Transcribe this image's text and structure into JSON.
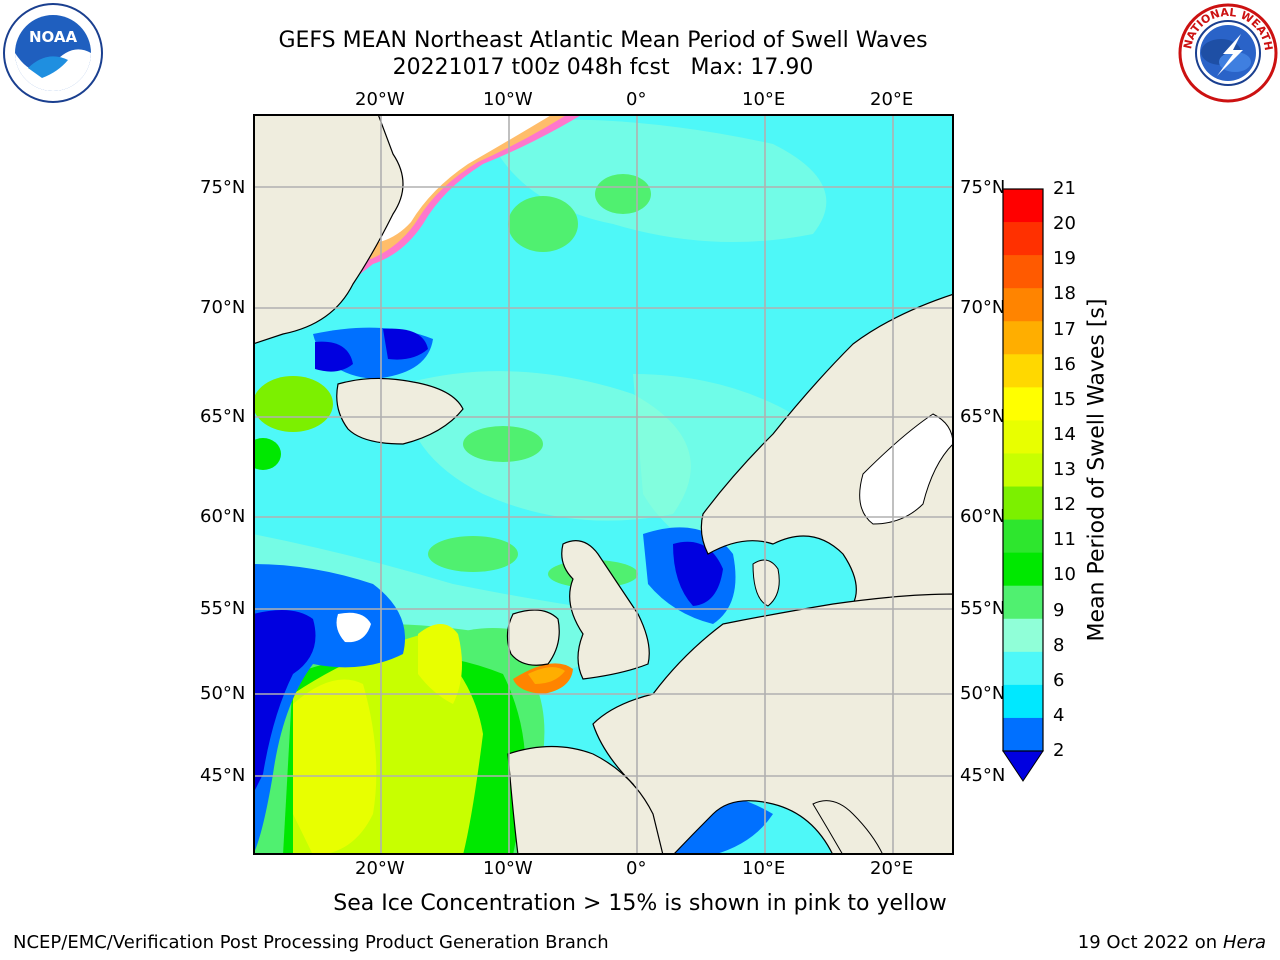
{
  "title": {
    "line1": "GEFS MEAN Northeast Atlantic Mean Period of Swell Waves",
    "line2": "20221017 t00z 048h fcst   Max: 17.90"
  },
  "logos": {
    "left": {
      "text": "NOAA",
      "name": "noaa-logo"
    },
    "right": {
      "text": "NATIONAL WEATHER SERVICE",
      "name": "nws-logo"
    }
  },
  "map": {
    "lon_ticks": [
      "20°W",
      "10°W",
      "0°",
      "10°E",
      "20°E"
    ],
    "lat_ticks": [
      "75°N",
      "70°N",
      "65°N",
      "60°N",
      "55°N",
      "50°N",
      "45°N"
    ],
    "extent": {
      "lon_min": -30,
      "lon_max": 25,
      "lat_min": 41,
      "lat_max": 78
    },
    "colors": {
      "land": "#efedde",
      "coast": "#000000",
      "grid": "#b0b0b0",
      "no_data": "#ffffff"
    }
  },
  "colorbar": {
    "label": "Mean Period of Swell Waves [s]",
    "ticks": [
      "21",
      "20",
      "19",
      "18",
      "17",
      "16",
      "15",
      "14",
      "13",
      "12",
      "11",
      "10",
      "9",
      "8",
      "6",
      "4",
      "2"
    ],
    "colors": [
      "#ff0000",
      "#ff3000",
      "#ff5a00",
      "#ff8400",
      "#ffae00",
      "#ffd800",
      "#ffff00",
      "#e8ff00",
      "#c8ff00",
      "#7cf000",
      "#2ee62e",
      "#00e800",
      "#50f070",
      "#90ffd8",
      "#4ef8f8",
      "#00e8ff",
      "#0070ff"
    ],
    "extend_color": "#0000e0"
  },
  "note": "Sea Ice Concentration > 15% is shown in pink to yellow",
  "footer": {
    "left": "NCEP/EMC/Verification Post Processing Product Generation Branch",
    "right_date": "19 Oct 2022 on ",
    "right_host": "Hera"
  }
}
